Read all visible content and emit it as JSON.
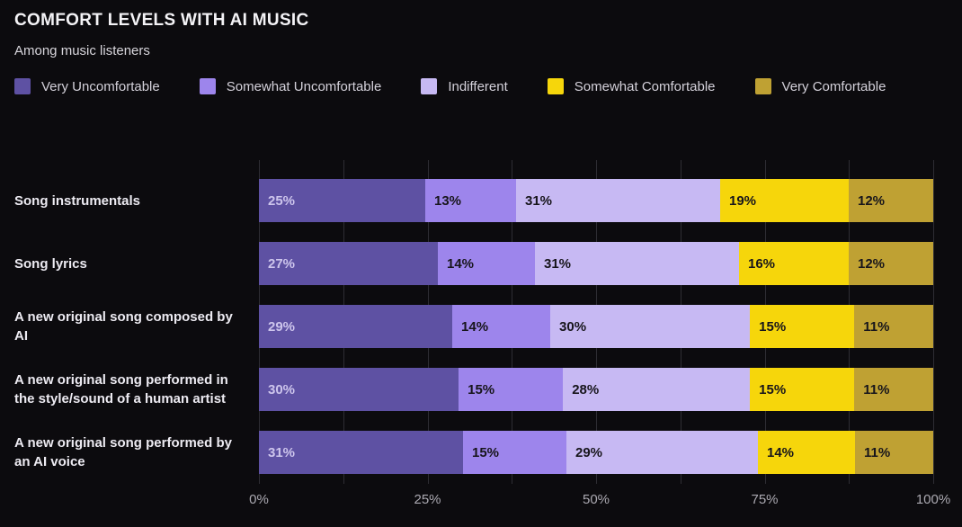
{
  "title": "COMFORT LEVELS WITH AI MUSIC",
  "subtitle": "Among music listeners",
  "colors": {
    "background": "#0c0b0e",
    "gridline": "#2e2d33",
    "very_uncomfortable": "#5e51a3",
    "somewhat_uncomfortable": "#9d85ec",
    "indifferent": "#c7b9f3",
    "somewhat_comfortable": "#f6d60b",
    "very_comfortable": "#bfa133"
  },
  "legend": [
    {
      "label": "Very Uncomfortable",
      "color": "#5e51a3"
    },
    {
      "label": "Somewhat Uncomfortable",
      "color": "#9d85ec"
    },
    {
      "label": "Indifferent",
      "color": "#c7b9f3"
    },
    {
      "label": "Somewhat Comfortable",
      "color": "#f6d60b"
    },
    {
      "label": "Very Comfortable",
      "color": "#bfa133"
    }
  ],
  "chart_data": {
    "type": "bar",
    "orientation": "horizontal",
    "stacked": true,
    "title": "COMFORT LEVELS WITH AI MUSIC",
    "subtitle": "Among music listeners",
    "categories": [
      "Song instrumentals",
      "Song lyrics",
      "A new original song composed by AI",
      "A new original song performed in the style/sound of a human artist",
      "A new original song performed by an AI voice"
    ],
    "series": [
      {
        "name": "Very Uncomfortable",
        "color": "#5e51a3",
        "values": [
          25,
          27,
          29,
          30,
          31
        ]
      },
      {
        "name": "Somewhat Uncomfortable",
        "color": "#9d85ec",
        "values": [
          13,
          14,
          14,
          15,
          15
        ]
      },
      {
        "name": "Indifferent",
        "color": "#c7b9f3",
        "values": [
          31,
          31,
          30,
          28,
          29
        ]
      },
      {
        "name": "Somewhat Comfortable",
        "color": "#f6d60b",
        "values": [
          19,
          16,
          15,
          15,
          14
        ]
      },
      {
        "name": "Very Comfortable",
        "color": "#bfa133",
        "values": [
          12,
          12,
          11,
          11,
          11
        ]
      }
    ],
    "value_suffix": "%",
    "xlim": [
      0,
      100
    ],
    "x_ticks": [
      "0%",
      "25%",
      "50%",
      "75%",
      "100%"
    ],
    "gridlines_every_percent": 12.5,
    "legend_position": "top",
    "grid": true
  }
}
